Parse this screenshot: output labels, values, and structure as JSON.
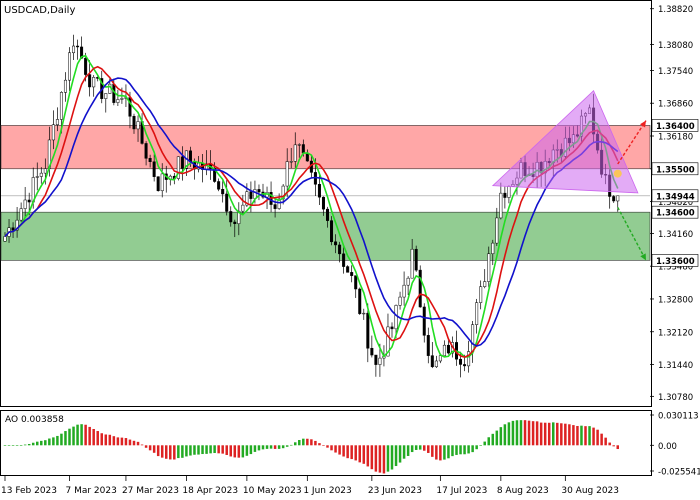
{
  "chart_data": {
    "type": "candlestick",
    "symbol_label": "USDCAD,Daily",
    "price_axis": {
      "min": 1.3058,
      "max": 1.3898,
      "ticks": [
        1.3882,
        1.3808,
        1.3754,
        1.3686,
        1.3618,
        1.355,
        1.3482,
        1.3416,
        1.3348,
        1.328,
        1.3212,
        1.3144,
        1.3078
      ],
      "tick_labels": [
        "1.38820",
        "1.38080",
        "1.37540",
        "1.36860",
        "1.36180",
        "1.35500",
        "1.34820",
        "1.34160",
        "1.33480",
        "1.32800",
        "1.32120",
        "1.31440",
        "1.30780"
      ]
    },
    "level_labels": [
      {
        "value": 1.364,
        "label": "1.36400",
        "color": "#000000"
      },
      {
        "value": 1.355,
        "label": "1.35500",
        "color": "#000000"
      },
      {
        "value": 1.3494,
        "label": "1.34944",
        "color": "#000000"
      },
      {
        "value": 1.346,
        "label": "1.34600",
        "color": "#000000"
      },
      {
        "value": 1.336,
        "label": "1.33600",
        "color": "#000000"
      }
    ],
    "zones": [
      {
        "name": "resistance",
        "from": 1.355,
        "to": 1.364,
        "color": "#ff8a8a"
      },
      {
        "name": "support",
        "from": 1.336,
        "to": 1.346,
        "color": "#6dbb6d"
      }
    ],
    "current_price_line": 1.3494,
    "x_axis_labels": [
      "13 Feb 2023",
      "7 Mar 2023",
      "27 Mar 2023",
      "18 Apr 2023",
      "10 May 2023",
      "1 Jun 2023",
      "23 Jun 2023",
      "17 Jul 2023",
      "8 Aug 2023",
      "30 Aug 2023"
    ],
    "x_label_bars": [
      0,
      16,
      30,
      45,
      60,
      75,
      91,
      108,
      123,
      139
    ],
    "bar_count": 160,
    "close_keyframes": [
      [
        0,
        1.341
      ],
      [
        10,
        1.356
      ],
      [
        17,
        1.382
      ],
      [
        22,
        1.372
      ],
      [
        30,
        1.369
      ],
      [
        38,
        1.352
      ],
      [
        45,
        1.357
      ],
      [
        52,
        1.354
      ],
      [
        57,
        1.344
      ],
      [
        62,
        1.351
      ],
      [
        67,
        1.347
      ],
      [
        72,
        1.361
      ],
      [
        78,
        1.348
      ],
      [
        86,
        1.332
      ],
      [
        92,
        1.314
      ],
      [
        96,
        1.322
      ],
      [
        101,
        1.337
      ],
      [
        106,
        1.313
      ],
      [
        110,
        1.318
      ],
      [
        114,
        1.316
      ],
      [
        118,
        1.329
      ],
      [
        123,
        1.35
      ],
      [
        128,
        1.355
      ],
      [
        133,
        1.356
      ],
      [
        136,
        1.359
      ],
      [
        141,
        1.361
      ],
      [
        145,
        1.367
      ],
      [
        149,
        1.352
      ],
      [
        152,
        1.3494
      ]
    ],
    "indicators": [
      {
        "name": "ma-fast",
        "color": "#22dd22",
        "period": 5
      },
      {
        "name": "ma-medium",
        "color": "#dd1111",
        "period": 9
      },
      {
        "name": "ma-slow",
        "color": "#1111cc",
        "period": 15
      }
    ],
    "ao": {
      "label": "AO 0.003858",
      "min": -0.02554,
      "max": 0.03011,
      "tick_labels": [
        "0.030113",
        "0.00",
        "-0.025541"
      ],
      "tick_values": [
        0.030113,
        0.0,
        -0.025541
      ],
      "up_color": "#22aa22",
      "down_color": "#dd2222"
    },
    "triangle": {
      "bars": [
        121,
        146,
        157
      ],
      "prices": [
        1.3515,
        1.3712,
        1.35
      ],
      "color": "#cc66ee"
    },
    "arrows": [
      {
        "from_bar": 152,
        "from_price": 1.356,
        "to_bar": 159,
        "to_price": 1.365,
        "color": "#ee2222"
      },
      {
        "from_bar": 152,
        "from_price": 1.347,
        "to_bar": 159,
        "to_price": 1.336,
        "color": "#22aa22"
      }
    ]
  }
}
